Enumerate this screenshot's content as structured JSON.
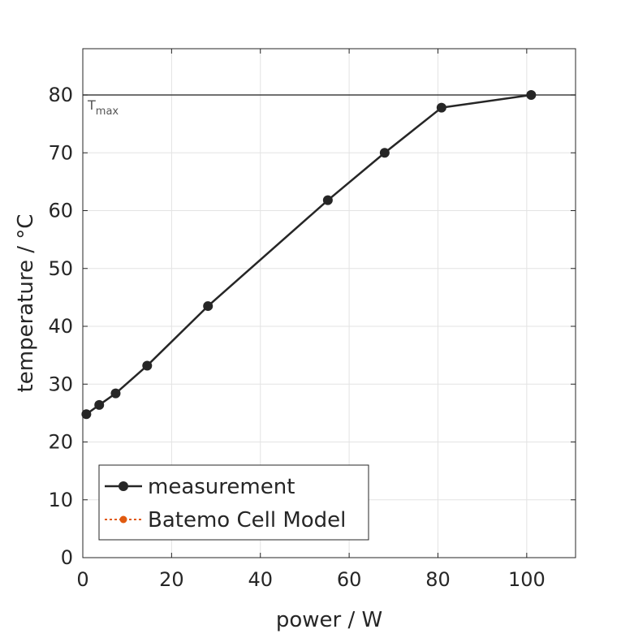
{
  "chart_data": {
    "type": "line",
    "xlabel": "power / W",
    "ylabel": "temperature / °C",
    "xlim": [
      0,
      111
    ],
    "ylim": [
      0,
      88
    ],
    "xticks": [
      0,
      20,
      40,
      60,
      80,
      100
    ],
    "yticks": [
      0,
      10,
      20,
      30,
      40,
      50,
      60,
      70,
      80
    ],
    "grid": true,
    "legend_placement": "bottom-left",
    "reference_line": {
      "label_main": "T",
      "label_sub": "max",
      "y": 80,
      "color": "#404040"
    },
    "series": [
      {
        "name": "measurement",
        "color": "#262626",
        "marker": "circle",
        "line_style": "solid",
        "x": [
          0.8,
          3.7,
          7.4,
          14.5,
          28.2,
          55.2,
          68.0,
          80.8,
          101.0
        ],
        "y": [
          24.8,
          26.4,
          28.4,
          33.2,
          43.5,
          61.8,
          70.0,
          77.8,
          80.0
        ]
      },
      {
        "name": "Batemo Cell Model",
        "color": "#e05a10",
        "marker": "circle",
        "line_style": "dotted",
        "x": [],
        "y": []
      }
    ]
  }
}
